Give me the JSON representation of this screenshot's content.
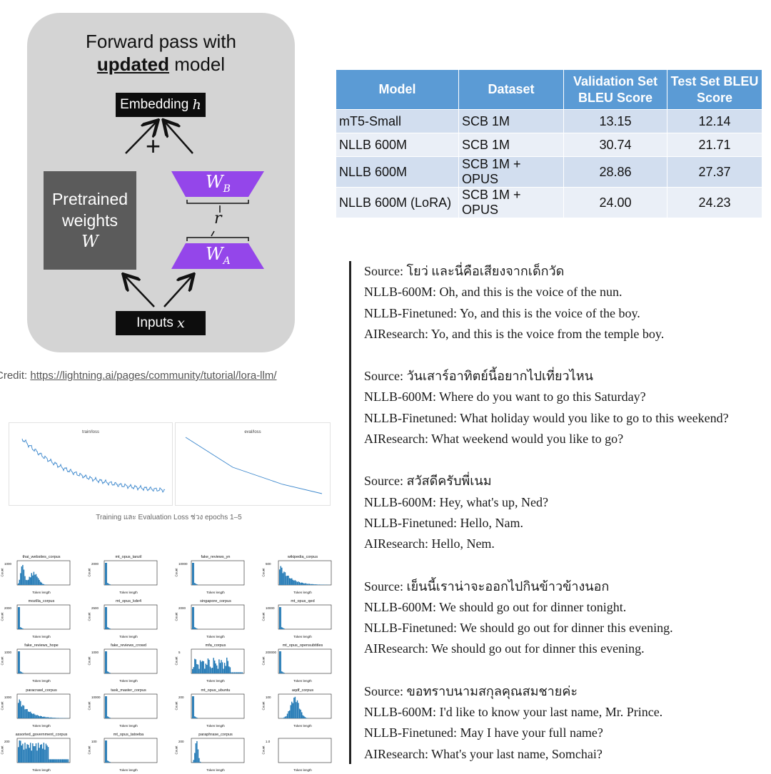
{
  "lora": {
    "title_line1": "Forward pass with",
    "title_bold": "updated",
    "title_rest": "model",
    "embedding_label": "Embedding",
    "embedding_var": "h",
    "pretrained_l1": "Pretrained",
    "pretrained_l2": "weights",
    "pretrained_var": "W",
    "wb": "W",
    "wb_sub": "B",
    "wa": "W",
    "wa_sub": "A",
    "rank": "r",
    "plus": "+",
    "inputs_label": "Inputs",
    "inputs_var": "x",
    "colors": {
      "panel": "#d4d4d4",
      "adapter": "#9446ea",
      "pretrained": "#5b5b5b"
    }
  },
  "credit": {
    "prefix": "Credit: ",
    "link": "https://lightning.ai/pages/community/tutorial/lora-llm/"
  },
  "bleu_table": {
    "headers": [
      "Model",
      "Dataset",
      "Validation Set BLEU Score",
      "Test Set BLEU Score"
    ],
    "rows": [
      [
        "mT5-Small",
        "SCB 1M",
        "13.15",
        "12.14"
      ],
      [
        "NLLB 600M",
        "SCB 1M",
        "30.74",
        "21.71"
      ],
      [
        "NLLB 600M",
        "SCB 1M + OPUS",
        "28.86",
        "27.37"
      ],
      [
        "NLLB 600M (LoRA)",
        "SCB 1M + OPUS",
        "24.00",
        "24.23"
      ]
    ],
    "colors": {
      "header": "#5b9bd5",
      "row_odd": "#d2deef",
      "row_even": "#eaeff7"
    }
  },
  "translations": [
    {
      "source": "Source: โยว่ และนี่คือเสียงจากเด็กวัด",
      "nllb": "NLLB-600M: Oh, and this is the voice of the nun.",
      "finetuned": "NLLB-Finetuned: Yo, and this is the voice of the boy.",
      "airesearch": "AIResearch: Yo, and this is the voice from the temple boy."
    },
    {
      "source": "Source: วันเสาร์อาทิตย์นี้อยากไปเที่ยวไหน",
      "nllb": "NLLB-600M: Where do you want to go this Saturday?",
      "finetuned": "NLLB-Finetuned: What holiday would you like to go to this weekend?",
      "airesearch": "AIResearch: What weekend would you like to go?"
    },
    {
      "source": "Source: สวัสดีครับพี่เนม",
      "nllb": "NLLB-600M: Hey, what's up, Ned?",
      "finetuned": "NLLB-Finetuned: Hello, Nam.",
      "airesearch": "AIResearch: Hello, Nem."
    },
    {
      "source": "Source: เย็นนี้เราน่าจะออกไปกินข้าวข้างนอก",
      "nllb": "NLLB-600M: We should go out for dinner tonight.",
      "finetuned": "NLLB-Finetuned: We should go out for dinner this evening.",
      "airesearch": "AIResearch: We should go out for dinner this evening."
    },
    {
      "source": "Source: ขอทราบนามสกุลคุณสมชายค่ะ",
      "nllb": "NLLB-600M: I'd like to know your last name, Mr. Prince.",
      "finetuned": "NLLB-Finetuned: May I have your full name?",
      "airesearch": "AIResearch: What's your last name, Somchai?"
    }
  ],
  "loss_charts": {
    "train_title": "train/loss",
    "eval_title": "eval/loss",
    "caption": "Training และ Evaluation Loss ช่วง epochs 1–5",
    "line_color": "#3a86cc"
  },
  "histograms": {
    "xlabel": "Token length",
    "ylabel": "Count",
    "bar_color": "#1f77b4",
    "items": [
      {
        "title": "thai_websites_corpus",
        "shape": "bimodal",
        "ymax": "1000"
      },
      {
        "title": "mt_opus_tanzil",
        "shape": "spike",
        "ymax": "2000"
      },
      {
        "title": "fake_reviews_yn",
        "shape": "spike",
        "ymax": "10000"
      },
      {
        "title": "wikipedia_corpus",
        "shape": "decay",
        "ymax": "500"
      },
      {
        "title": "mozilla_corpus",
        "shape": "spike",
        "ymax": "2000"
      },
      {
        "title": "mt_opus_kde4",
        "shape": "spike",
        "ymax": "2500"
      },
      {
        "title": "singapore_corpus",
        "shape": "spike",
        "ymax": "2000"
      },
      {
        "title": "mt_opus_qed",
        "shape": "spike",
        "ymax": "10000"
      },
      {
        "title": "fake_reviews_hope",
        "shape": "spike",
        "ymax": "1000"
      },
      {
        "title": "fake_reviews_crowd",
        "shape": "spike",
        "ymax": "1000"
      },
      {
        "title": "mfa_corpus",
        "shape": "noisy",
        "ymax": "5"
      },
      {
        "title": "mt_opus_opensubtitles",
        "shape": "spike",
        "ymax": "200000"
      },
      {
        "title": "paracrawl_corpus",
        "shape": "decay",
        "ymax": "1000"
      },
      {
        "title": "task_master_corpus",
        "shape": "spike",
        "ymax": "10000"
      },
      {
        "title": "mt_opus_ubuntu",
        "shape": "spike",
        "ymax": "200"
      },
      {
        "title": "aqdf_corpus",
        "shape": "bell",
        "ymax": "100"
      },
      {
        "title": "assorted_government_corpus",
        "shape": "broad",
        "ymax": "200"
      },
      {
        "title": "mt_opus_tatoeba",
        "shape": "spike",
        "ymax": "100"
      },
      {
        "title": "paraphrase_corpus",
        "shape": "narrow",
        "ymax": "200"
      },
      {
        "title": "",
        "shape": "empty",
        "ymax": "1.0"
      }
    ]
  }
}
